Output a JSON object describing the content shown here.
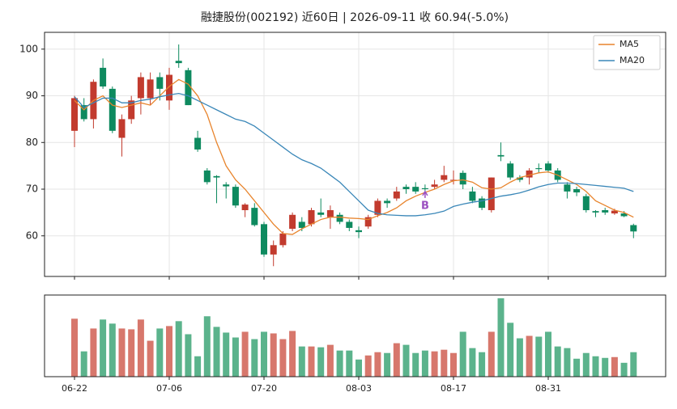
{
  "chart_data": {
    "type": "candlestick",
    "title": "融捷股份(002192) 近60日  |  2026-09-11 收 60.94(-5.0%)",
    "categories": [
      "06-22",
      null,
      null,
      null,
      null,
      null,
      null,
      null,
      null,
      null,
      "07-06",
      null,
      null,
      null,
      null,
      null,
      null,
      null,
      null,
      null,
      "07-20",
      null,
      null,
      null,
      null,
      null,
      null,
      null,
      null,
      null,
      "08-03",
      null,
      null,
      null,
      null,
      null,
      null,
      null,
      null,
      null,
      "08-17",
      null,
      null,
      null,
      null,
      null,
      null,
      null,
      null,
      null,
      "08-31",
      null,
      null,
      null,
      null,
      null,
      null,
      null,
      null,
      null
    ],
    "open": [
      82.5,
      88,
      85,
      96,
      91.5,
      81,
      85,
      89.5,
      89.5,
      94,
      89,
      97.5,
      95.5,
      81,
      74,
      72.8,
      71,
      70.5,
      65.5,
      66,
      62.5,
      56,
      58,
      61.5,
      63,
      62.5,
      65,
      64,
      64.5,
      63,
      61.2,
      62,
      64.5,
      67.5,
      68,
      70.5,
      70.5,
      70.2,
      70.5,
      72,
      71.8,
      73.5,
      69.5,
      68,
      65.5,
      77.3,
      75.5,
      72.5,
      72.5,
      74.5,
      75.5,
      74,
      71,
      70,
      68.5,
      65.3,
      65.5,
      64.8,
      64.8,
      62.3
    ],
    "high": [
      90,
      89.5,
      93.5,
      98,
      92,
      86,
      90,
      95,
      95,
      95,
      96,
      101,
      96,
      82.5,
      74.5,
      73,
      71.5,
      71,
      67,
      67,
      63,
      59,
      61,
      65,
      64,
      66,
      68,
      66.5,
      65,
      63.5,
      62,
      64.5,
      68,
      68,
      70.5,
      71,
      71.5,
      71,
      72,
      75,
      74,
      74,
      70.5,
      68.5,
      72.5,
      80,
      76,
      73,
      74.5,
      75.5,
      76,
      74.5,
      71.5,
      70.5,
      69,
      65.5,
      66,
      65.8,
      65.3,
      62.6
    ],
    "low": [
      79,
      84.5,
      83,
      91.5,
      82,
      77,
      84,
      86,
      88,
      89,
      87,
      96,
      88,
      78,
      71,
      67,
      68,
      66,
      64,
      62,
      55.5,
      53.5,
      57.5,
      61,
      61,
      62,
      64,
      61.5,
      62.5,
      61,
      59.5,
      61.5,
      64,
      66,
      67.5,
      69,
      69,
      69.5,
      70,
      71.5,
      71,
      70,
      67,
      65.5,
      65,
      76,
      72,
      71.5,
      71,
      73.5,
      73.5,
      71.5,
      68,
      68.5,
      65,
      64,
      64.5,
      64.5,
      64,
      59.5
    ],
    "close": [
      89.5,
      85,
      93,
      92,
      82.5,
      85,
      89,
      94,
      93.5,
      91.5,
      94.5,
      97,
      88,
      78.5,
      71.5,
      72.5,
      70.6,
      66.5,
      66.7,
      62.3,
      56,
      58,
      60.5,
      64.5,
      61.7,
      65.5,
      64.5,
      65.5,
      63,
      61.7,
      60.8,
      64,
      67.5,
      67,
      69.5,
      70,
      69.5,
      70,
      71,
      73,
      72,
      71,
      67.5,
      66,
      72.5,
      77,
      72.5,
      72,
      74,
      74.3,
      74,
      72,
      69.5,
      69.3,
      65.5,
      65,
      65,
      65.4,
      64.2,
      60.94
    ],
    "up_color": "#c23b2e",
    "down_color": "#0e8a5f",
    "ylim": [
      51.3,
      103.6
    ],
    "yticks": [
      60,
      70,
      80,
      90,
      100
    ],
    "grid": true,
    "legend": "upper right",
    "series": [
      {
        "name": "MA5",
        "color": "#e8842c",
        "values": [
          89,
          87,
          89,
          90,
          88,
          87.5,
          88,
          88.5,
          88,
          90,
          92,
          93.5,
          92.5,
          90,
          86,
          80,
          75,
          72,
          70,
          67.5,
          65,
          62.5,
          60.5,
          60.3,
          61.5,
          62.5,
          63.5,
          64,
          64,
          63.8,
          63.7,
          63.5,
          64.3,
          65,
          66,
          67.5,
          68.5,
          69.3,
          70,
          71,
          71.8,
          72,
          71.5,
          70.3,
          70,
          70.3,
          71.5,
          72.5,
          73,
          73.5,
          73.7,
          73,
          72,
          71,
          69.5,
          67.5,
          66.5,
          65.5,
          65,
          64
        ]
      },
      {
        "name": "MA20",
        "color": "#3a87b8",
        "values": [
          89.8,
          87.5,
          88.5,
          89.5,
          89.5,
          88.5,
          88.5,
          89,
          89.3,
          89.8,
          90.2,
          90.5,
          90,
          89,
          88,
          87,
          86,
          85,
          84.5,
          83.5,
          82,
          80.5,
          79,
          77.5,
          76.3,
          75.5,
          74.5,
          73,
          71.5,
          69.5,
          67.5,
          65.5,
          64.8,
          64.5,
          64.4,
          64.3,
          64.3,
          64.5,
          64.8,
          65.3,
          66.3,
          66.8,
          67.2,
          67.5,
          68,
          68.5,
          68.8,
          69.2,
          69.8,
          70.5,
          71,
          71.3,
          71.3,
          71.2,
          71,
          70.8,
          70.6,
          70.4,
          70.2,
          69.5
        ]
      }
    ],
    "annotations": [
      {
        "text": "B",
        "index": 37,
        "value": 69.5,
        "color": "#9b4fc0"
      }
    ],
    "volume": {
      "values": [
        71,
        31,
        59,
        70,
        65,
        59,
        58,
        70,
        44,
        59,
        62,
        68,
        52,
        25,
        74,
        61,
        54,
        48,
        55,
        46,
        55,
        53,
        46,
        56,
        37,
        37,
        36,
        39,
        32,
        32,
        21,
        26,
        30,
        29,
        41,
        39,
        29,
        32,
        31,
        33,
        29,
        55,
        35,
        30,
        55,
        96,
        66,
        47,
        50,
        49,
        55,
        37,
        35,
        22,
        29,
        25,
        23,
        24,
        17,
        30
      ],
      "up_color": "#d7776c",
      "down_color": "#5bb38c",
      "ylim": [
        0,
        100
      ]
    }
  }
}
